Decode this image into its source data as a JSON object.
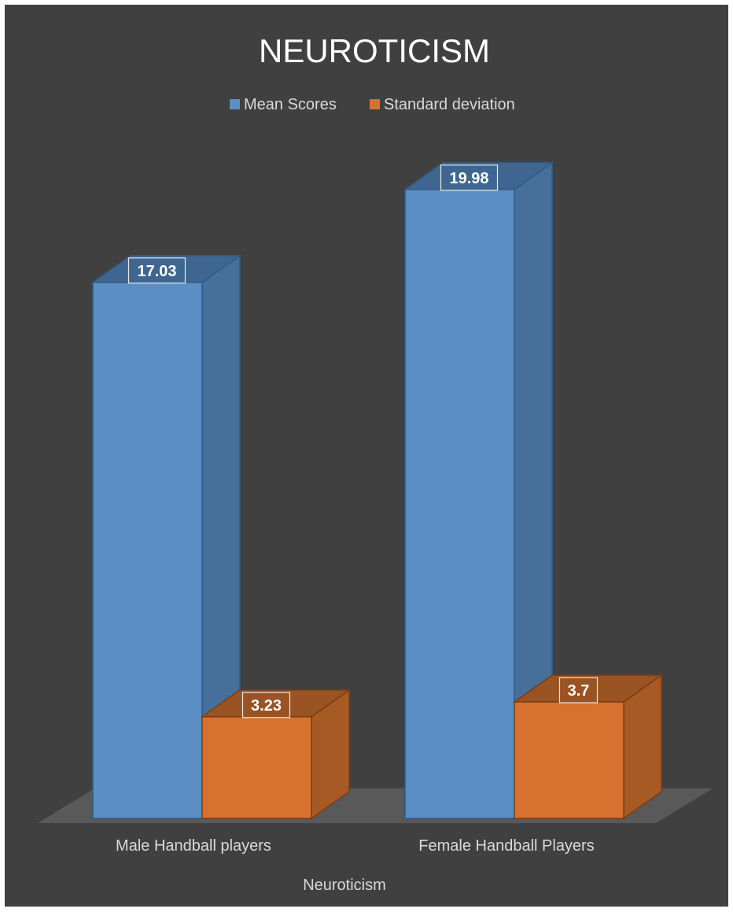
{
  "chart_data": {
    "type": "bar",
    "title": "NEUROTICISM",
    "xlabel": "Neuroticism",
    "ylabel": "",
    "categories": [
      "Male Handball players",
      "Female Handball Players"
    ],
    "series": [
      {
        "name": "Mean Scores",
        "values": [
          17.03,
          19.98
        ],
        "labels": [
          "17.03",
          "19.98"
        ],
        "color": "#5b8fc4"
      },
      {
        "name": "Standard deviation",
        "values": [
          3.23,
          3.7
        ],
        "labels": [
          "3.23",
          "3.7"
        ],
        "color": "#d87030"
      }
    ],
    "legend_position": "top",
    "grid": false,
    "three_d": true
  }
}
